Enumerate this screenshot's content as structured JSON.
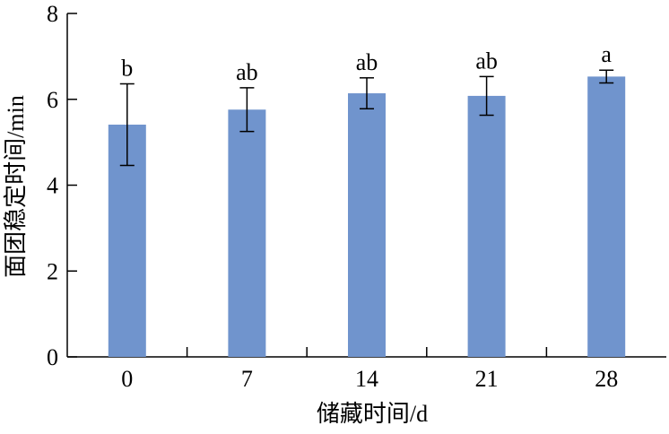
{
  "chart_data": {
    "type": "bar",
    "x_label": "储藏时间/d",
    "y_label": "面团稳定时间/min",
    "categories": [
      "0",
      "7",
      "14",
      "21",
      "28"
    ],
    "values": [
      5.41,
      5.76,
      6.14,
      6.08,
      6.53
    ],
    "errors": [
      0.95,
      0.51,
      0.36,
      0.45,
      0.15
    ],
    "annotations": [
      "b",
      "ab",
      "ab",
      "ab",
      "a"
    ],
    "color": "#7094cd",
    "ylim": [
      0,
      8
    ],
    "yticks": [
      0,
      2,
      4,
      6,
      8
    ],
    "grid": false
  }
}
